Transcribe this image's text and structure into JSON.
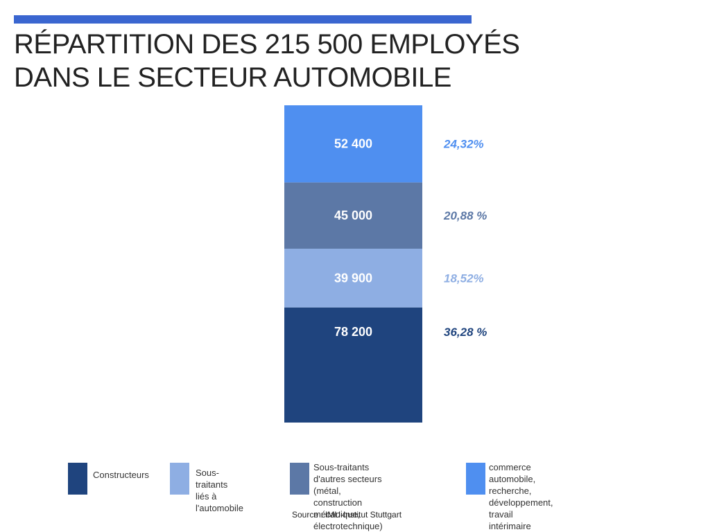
{
  "title_lines": [
    "RÉPARTITION DES 215 500 EMPLOYÉS",
    "DANS LE SECTEUR AUTOMOBILE"
  ],
  "source": "Source : IMU-Institut Stuttgart",
  "chart_data": {
    "type": "bar",
    "stacked": true,
    "total": 215500,
    "series": [
      {
        "name": "Constructeurs",
        "value": 78200,
        "value_label": "78 200",
        "percent_label": "36,28 %",
        "color": "#1f447e"
      },
      {
        "name": "Sous-traitants\nliés à l'automobile",
        "value": 39900,
        "value_label": "39 900",
        "percent_label": "18,52%",
        "color": "#8eaee3"
      },
      {
        "name": "Sous-traitants d'autres secteurs\n(métal, construction mécanique,\nélectrotechnique)",
        "value": 45000,
        "value_label": "45 000",
        "percent_label": "20,88 %",
        "color": "#5c78a6"
      },
      {
        "name": "commerce automobile,\nrecherche, développement,\ntravail intérimaire",
        "value": 52400,
        "value_label": "52 400",
        "percent_label": "24,32%",
        "color": "#4f8ff0"
      }
    ],
    "legend_position": "bottom"
  }
}
